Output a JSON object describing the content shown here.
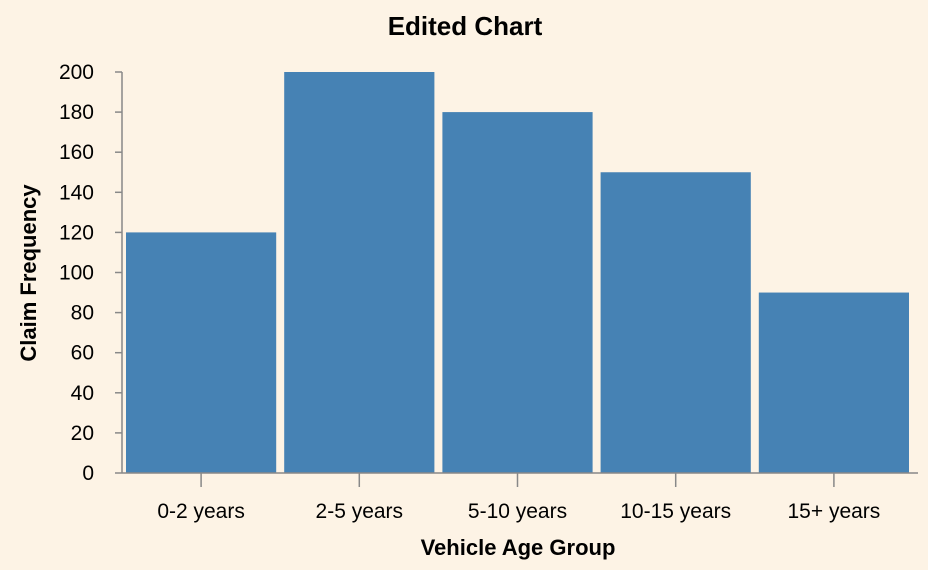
{
  "chart_data": {
    "type": "bar",
    "title": "Edited Chart",
    "xlabel": "Vehicle Age Group",
    "ylabel": "Claim Frequency",
    "categories": [
      "0-2 years",
      "2-5 years",
      "5-10 years",
      "10-15 years",
      "15+ years"
    ],
    "values": [
      120,
      200,
      180,
      150,
      90
    ],
    "ylim": [
      0,
      200
    ],
    "yticks": [
      0,
      20,
      40,
      60,
      80,
      100,
      120,
      140,
      160,
      180,
      200
    ],
    "grid": false,
    "bar_color": "#4682b4",
    "background_color": "#fdf3e5"
  }
}
